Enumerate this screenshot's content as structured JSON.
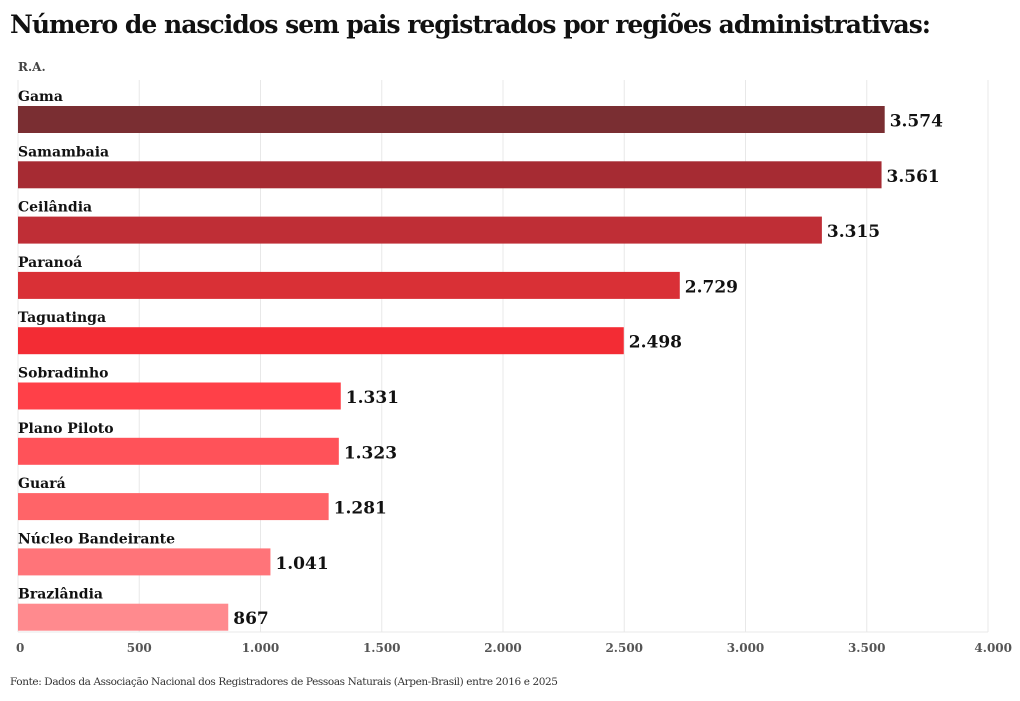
{
  "title": "Número de nascidos sem pais registrados por regiões administrativas:",
  "source": "Fonte: Dados da Associação Nacional dos Registradores de Pessoas Naturais (Arpen-Brasil) entre 2016 e 2025",
  "chart_data": {
    "type": "bar",
    "orientation": "horizontal",
    "title": "Número de nascidos sem pais registrados por regiões administrativas:",
    "ylabel": "R.A.",
    "xlabel": "",
    "categories": [
      "Gama",
      "Samambaia",
      "Ceilândia",
      "Paranoá",
      "Taguatinga",
      "Sobradinho",
      "Plano Piloto",
      "Guará",
      "Núcleo Bandeirante",
      "Brazlândia"
    ],
    "values": [
      3574,
      3561,
      3315,
      2729,
      2498,
      1331,
      1323,
      1281,
      1041,
      867
    ],
    "value_labels": [
      "3.574",
      "3.561",
      "3.315",
      "2.729",
      "2.498",
      "1.331",
      "1.323",
      "1.281",
      "1.041",
      "867"
    ],
    "colors": [
      "#7a2e32",
      "#a62b33",
      "#bf2e36",
      "#d93036",
      "#f32c34",
      "#ff4048",
      "#ff5259",
      "#ff6468",
      "#ff7479",
      "#ff8a8e"
    ],
    "xlim": [
      0,
      4000
    ],
    "xticks": [
      0,
      500,
      1000,
      1500,
      2000,
      2500,
      3000,
      3500,
      4000
    ],
    "xtick_labels": [
      "0",
      "500",
      "1.000",
      "1.500",
      "2.000",
      "2.500",
      "3.000",
      "3.500",
      "4.000"
    ],
    "grid": true,
    "legend": "none"
  }
}
